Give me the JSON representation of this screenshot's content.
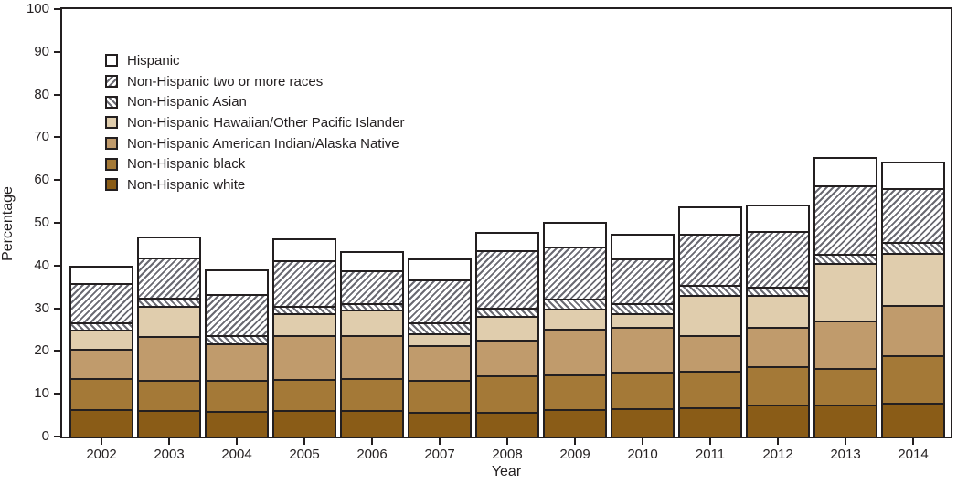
{
  "axes": {
    "ylabel": "Percentage",
    "xlabel": "Year"
  },
  "colors": {
    "ink": "#231f20",
    "hatch_stripe": "#6a6a72",
    "background": "#ffffff"
  },
  "chart_data": {
    "type": "bar",
    "stacked": true,
    "title": "",
    "xlabel": "Year",
    "ylabel": "Percentage",
    "ylim": [
      0,
      100
    ],
    "yticks": [
      0,
      10,
      20,
      30,
      40,
      50,
      60,
      70,
      80,
      90,
      100
    ],
    "grid": false,
    "legend_position": "top-left-inside",
    "categories": [
      "2002",
      "2003",
      "2004",
      "2005",
      "2006",
      "2007",
      "2008",
      "2009",
      "2010",
      "2011",
      "2012",
      "2013",
      "2014"
    ],
    "series_order": "bottom-to-top; legend shown top-to-bottom reversed",
    "series": [
      {
        "key": "non-hispanic-white",
        "name": "Non-Hispanic white",
        "fill": "#8a5c17",
        "pattern": "solid",
        "values": [
          6.4,
          6.1,
          5.9,
          6.1,
          6.1,
          5.7,
          5.7,
          6.4,
          6.6,
          6.8,
          7.4,
          7.4,
          7.9
        ]
      },
      {
        "key": "non-hispanic-black",
        "name": "Non-Hispanic black",
        "fill": "#a47937",
        "pattern": "solid",
        "values": [
          7.2,
          7.2,
          7.4,
          7.4,
          7.6,
          7.6,
          8.7,
          8.2,
          8.5,
          8.6,
          9.1,
          8.6,
          11.1
        ]
      },
      {
        "key": "non-hispanic-american-indian-alaska-native",
        "name": "Non-Hispanic American Indian/Alaska Native",
        "fill": "#c09b6c",
        "pattern": "solid",
        "values": [
          6.9,
          10.3,
          8.5,
          10.2,
          10.0,
          8.0,
          8.2,
          10.7,
          10.5,
          8.4,
          9.1,
          11.2,
          11.8
        ]
      },
      {
        "key": "non-hispanic-hawaiian-other-pacific-islander",
        "name": "Non-Hispanic Hawaiian/Other Pacific Islander",
        "fill": "#e0cdad",
        "pattern": "solid",
        "values": [
          4.6,
          6.9,
          0.0,
          5.1,
          6.0,
          2.9,
          5.7,
          4.6,
          3.2,
          9.3,
          7.5,
          13.4,
          12.1
        ]
      },
      {
        "key": "non-hispanic-asian",
        "name": "Non-Hispanic Asian",
        "fill": "#ffffff",
        "pattern": "backslash-hatch",
        "values": [
          1.7,
          1.9,
          2.0,
          1.8,
          1.6,
          2.5,
          1.8,
          2.4,
          2.5,
          2.3,
          1.9,
          2.2,
          2.7
        ]
      },
      {
        "key": "non-hispanic-two-or-more-races",
        "name": "Non-Hispanic two or more races",
        "fill": "#ffffff",
        "pattern": "slash-hatch",
        "values": [
          9.0,
          9.4,
          9.6,
          10.7,
          7.5,
          10.0,
          13.4,
          12.2,
          10.4,
          12.1,
          13.1,
          16.0,
          12.5
        ]
      },
      {
        "key": "hispanic",
        "name": "Hispanic",
        "fill": "#ffffff",
        "pattern": "solid",
        "values": [
          4.2,
          5.0,
          5.7,
          5.0,
          4.6,
          4.9,
          4.3,
          5.8,
          5.8,
          6.3,
          6.2,
          6.6,
          6.3
        ]
      }
    ],
    "totals": [
      40.0,
      46.8,
      39.1,
      46.3,
      43.4,
      41.6,
      47.8,
      50.3,
      47.5,
      53.8,
      54.3,
      65.4,
      64.4
    ]
  }
}
